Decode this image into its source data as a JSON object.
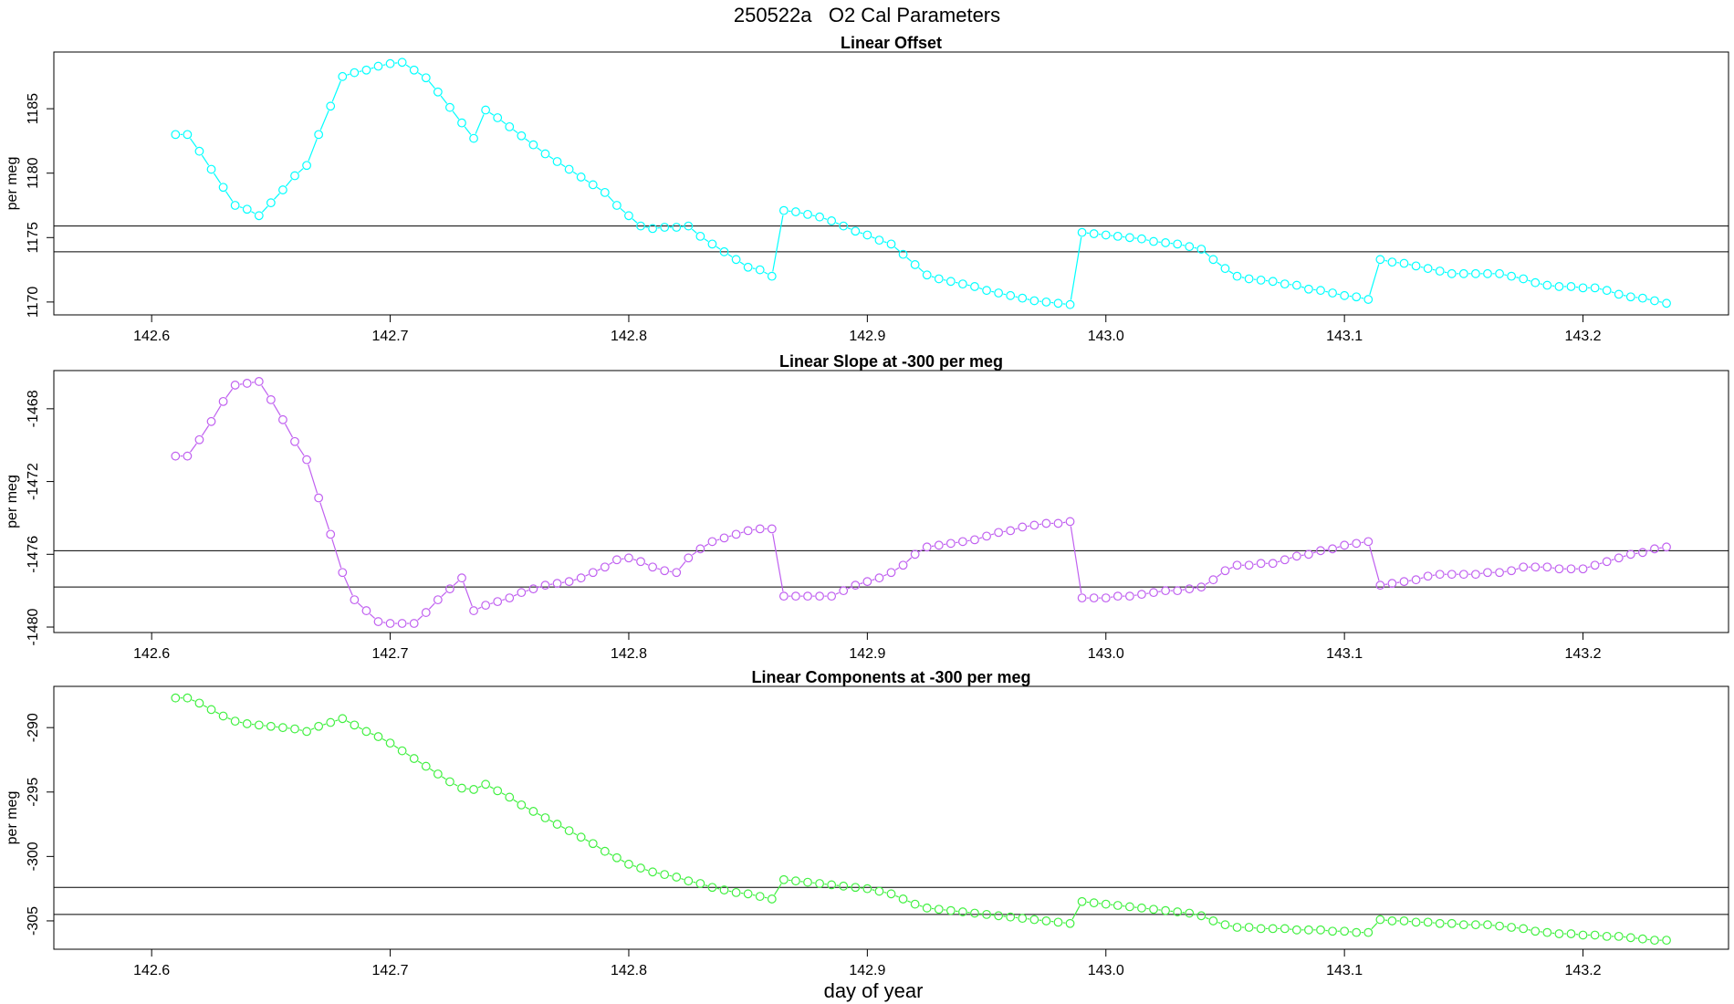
{
  "title": "250522a   O2 Cal Parameters",
  "xlabel": "day of year",
  "chart_data": [
    {
      "type": "scatter",
      "title": "Linear Offset",
      "ylabel": "per meg",
      "color": "#00ffff",
      "x": [
        142.61,
        142.615,
        142.62,
        142.625,
        142.63,
        142.635,
        142.64,
        142.645,
        142.65,
        142.655,
        142.66,
        142.665,
        142.67,
        142.675,
        142.68,
        142.685,
        142.69,
        142.695,
        142.7,
        142.705,
        142.71,
        142.715,
        142.72,
        142.725,
        142.73,
        142.735,
        142.74,
        142.745,
        142.75,
        142.755,
        142.76,
        142.765,
        142.77,
        142.775,
        142.78,
        142.785,
        142.79,
        142.795,
        142.8,
        142.805,
        142.81,
        142.815,
        142.82,
        142.825,
        142.83,
        142.835,
        142.84,
        142.845,
        142.85,
        142.855,
        142.86,
        142.865,
        142.87,
        142.875,
        142.88,
        142.885,
        142.89,
        142.895,
        142.9,
        142.905,
        142.91,
        142.915,
        142.92,
        142.925,
        142.93,
        142.935,
        142.94,
        142.945,
        142.95,
        142.955,
        142.96,
        142.965,
        142.97,
        142.975,
        142.98,
        142.985,
        142.99,
        142.995,
        143,
        143.005,
        143.01,
        143.015,
        143.02,
        143.025,
        143.03,
        143.035,
        143.04,
        143.045,
        143.05,
        143.055,
        143.06,
        143.065,
        143.07,
        143.075,
        143.08,
        143.085,
        143.09,
        143.095,
        143.1,
        143.105,
        143.11,
        143.115,
        143.12,
        143.125,
        143.13,
        143.135,
        143.14,
        143.145,
        143.15,
        143.155,
        143.16,
        143.165,
        143.17,
        143.175,
        143.18,
        143.185,
        143.19,
        143.195,
        143.2,
        143.205,
        143.21,
        143.215,
        143.22,
        143.225,
        143.23,
        143.235
      ],
      "values": [
        1183.0,
        1183.0,
        1181.7,
        1180.3,
        1178.9,
        1177.5,
        1177.2,
        1176.7,
        1177.7,
        1178.7,
        1179.8,
        1180.6,
        1183.0,
        1185.2,
        1187.5,
        1187.8,
        1188.0,
        1188.3,
        1188.5,
        1188.6,
        1188.0,
        1187.4,
        1186.3,
        1185.1,
        1183.9,
        1182.7,
        1184.9,
        1184.3,
        1183.6,
        1182.9,
        1182.2,
        1181.5,
        1180.9,
        1180.3,
        1179.7,
        1179.1,
        1178.5,
        1177.5,
        1176.7,
        1175.9,
        1175.7,
        1175.8,
        1175.8,
        1175.9,
        1175.1,
        1174.5,
        1173.9,
        1173.3,
        1172.7,
        1172.5,
        1172.0,
        1177.1,
        1177.0,
        1176.8,
        1176.6,
        1176.3,
        1175.9,
        1175.5,
        1175.2,
        1174.8,
        1174.5,
        1173.7,
        1172.9,
        1172.1,
        1171.8,
        1171.6,
        1171.4,
        1171.2,
        1170.9,
        1170.7,
        1170.5,
        1170.3,
        1170.1,
        1170.0,
        1169.9,
        1169.8,
        1175.4,
        1175.3,
        1175.2,
        1175.1,
        1175.0,
        1174.9,
        1174.7,
        1174.6,
        1174.5,
        1174.3,
        1174.1,
        1173.3,
        1172.6,
        1172.0,
        1171.8,
        1171.7,
        1171.6,
        1171.4,
        1171.3,
        1171.0,
        1170.9,
        1170.7,
        1170.5,
        1170.4,
        1170.2,
        1173.3,
        1173.1,
        1173.0,
        1172.8,
        1172.6,
        1172.4,
        1172.2,
        1172.2,
        1172.2,
        1172.2,
        1172.2,
        1172.0,
        1171.8,
        1171.5,
        1171.3,
        1171.2,
        1171.2,
        1171.1,
        1171.1,
        1170.9,
        1170.6,
        1170.4,
        1170.3,
        1170.1,
        1169.9
      ],
      "xlim": [
        142.559,
        143.261
      ],
      "xticks": [
        142.6,
        142.7,
        142.8,
        142.9,
        {
          "value": 143,
          "label": "143.0"
        },
        143.1,
        143.2
      ],
      "ylim": [
        1169.0,
        1189.4
      ],
      "yticks": [
        1170,
        1175,
        1180,
        1185
      ],
      "hlines": [
        1175.9,
        1173.9
      ]
    },
    {
      "type": "scatter",
      "title": "Linear Slope at -300 per meg",
      "ylabel": "per meg",
      "color": "#c060f0",
      "x": [
        142.61,
        142.615,
        142.62,
        142.625,
        142.63,
        142.635,
        142.64,
        142.645,
        142.65,
        142.655,
        142.66,
        142.665,
        142.67,
        142.675,
        142.68,
        142.685,
        142.69,
        142.695,
        142.7,
        142.705,
        142.71,
        142.715,
        142.72,
        142.725,
        142.73,
        142.735,
        142.74,
        142.745,
        142.75,
        142.755,
        142.76,
        142.765,
        142.77,
        142.775,
        142.78,
        142.785,
        142.79,
        142.795,
        142.8,
        142.805,
        142.81,
        142.815,
        142.82,
        142.825,
        142.83,
        142.835,
        142.84,
        142.845,
        142.85,
        142.855,
        142.86,
        142.865,
        142.87,
        142.875,
        142.88,
        142.885,
        142.89,
        142.895,
        142.9,
        142.905,
        142.91,
        142.915,
        142.92,
        142.925,
        142.93,
        142.935,
        142.94,
        142.945,
        142.95,
        142.955,
        142.96,
        142.965,
        142.97,
        142.975,
        142.98,
        142.985,
        142.99,
        142.995,
        143,
        143.005,
        143.01,
        143.015,
        143.02,
        143.025,
        143.03,
        143.035,
        143.04,
        143.045,
        143.05,
        143.055,
        143.06,
        143.065,
        143.07,
        143.075,
        143.08,
        143.085,
        143.09,
        143.095,
        143.1,
        143.105,
        143.11,
        143.115,
        143.12,
        143.125,
        143.13,
        143.135,
        143.14,
        143.145,
        143.15,
        143.155,
        143.16,
        143.165,
        143.17,
        143.175,
        143.18,
        143.185,
        143.19,
        143.195,
        143.2,
        143.205,
        143.21,
        143.215,
        143.22,
        143.225,
        143.23,
        143.235
      ],
      "values": [
        -1470.6,
        -1470.6,
        -1469.7,
        -1468.7,
        -1467.6,
        -1466.7,
        -1466.6,
        -1466.5,
        -1467.5,
        -1468.6,
        -1469.8,
        -1470.8,
        -1472.9,
        -1474.9,
        -1477.0,
        -1478.5,
        -1479.1,
        -1479.7,
        -1479.8,
        -1479.8,
        -1479.8,
        -1479.2,
        -1478.5,
        -1477.9,
        -1477.3,
        -1479.1,
        -1478.8,
        -1478.6,
        -1478.4,
        -1478.1,
        -1477.9,
        -1477.7,
        -1477.6,
        -1477.5,
        -1477.3,
        -1477.0,
        -1476.7,
        -1476.3,
        -1476.2,
        -1476.4,
        -1476.7,
        -1476.9,
        -1477.0,
        -1476.2,
        -1475.7,
        -1475.3,
        -1475.1,
        -1474.9,
        -1474.7,
        -1474.6,
        -1474.6,
        -1478.3,
        -1478.3,
        -1478.3,
        -1478.3,
        -1478.3,
        -1478.0,
        -1477.7,
        -1477.5,
        -1477.3,
        -1477.0,
        -1476.6,
        -1476.0,
        -1475.6,
        -1475.5,
        -1475.4,
        -1475.3,
        -1475.2,
        -1475.0,
        -1474.8,
        -1474.7,
        -1474.5,
        -1474.4,
        -1474.3,
        -1474.3,
        -1474.2,
        -1478.4,
        -1478.4,
        -1478.4,
        -1478.3,
        -1478.3,
        -1478.2,
        -1478.1,
        -1478.0,
        -1478.0,
        -1477.9,
        -1477.8,
        -1477.4,
        -1476.9,
        -1476.6,
        -1476.6,
        -1476.5,
        -1476.5,
        -1476.3,
        -1476.1,
        -1476.0,
        -1475.8,
        -1475.7,
        -1475.5,
        -1475.4,
        -1475.3,
        -1477.7,
        -1477.6,
        -1477.5,
        -1477.4,
        -1477.2,
        -1477.1,
        -1477.1,
        -1477.1,
        -1477.1,
        -1477.0,
        -1477.0,
        -1476.9,
        -1476.7,
        -1476.7,
        -1476.7,
        -1476.8,
        -1476.8,
        -1476.8,
        -1476.6,
        -1476.4,
        -1476.2,
        -1476.0,
        -1475.9,
        -1475.7,
        -1475.6
      ],
      "xlim": [
        142.559,
        143.261
      ],
      "xticks": [
        142.6,
        142.7,
        142.8,
        142.9,
        {
          "value": 143,
          "label": "143.0"
        },
        143.1,
        143.2
      ],
      "ylim": [
        -1480.3,
        -1465.9
      ],
      "yticks": [
        -1480,
        -1476,
        -1472,
        -1468
      ],
      "hlines": [
        -1475.8,
        -1477.8
      ]
    },
    {
      "type": "scatter",
      "title": "Linear Components at -300 per meg",
      "ylabel": "per meg",
      "color": "#40f040",
      "x": [
        142.61,
        142.615,
        142.62,
        142.625,
        142.63,
        142.635,
        142.64,
        142.645,
        142.65,
        142.655,
        142.66,
        142.665,
        142.67,
        142.675,
        142.68,
        142.685,
        142.69,
        142.695,
        142.7,
        142.705,
        142.71,
        142.715,
        142.72,
        142.725,
        142.73,
        142.735,
        142.74,
        142.745,
        142.75,
        142.755,
        142.76,
        142.765,
        142.77,
        142.775,
        142.78,
        142.785,
        142.79,
        142.795,
        142.8,
        142.805,
        142.81,
        142.815,
        142.82,
        142.825,
        142.83,
        142.835,
        142.84,
        142.845,
        142.85,
        142.855,
        142.86,
        142.865,
        142.87,
        142.875,
        142.88,
        142.885,
        142.89,
        142.895,
        142.9,
        142.905,
        142.91,
        142.915,
        142.92,
        142.925,
        142.93,
        142.935,
        142.94,
        142.945,
        142.95,
        142.955,
        142.96,
        142.965,
        142.97,
        142.975,
        142.98,
        142.985,
        142.99,
        142.995,
        143,
        143.005,
        143.01,
        143.015,
        143.02,
        143.025,
        143.03,
        143.035,
        143.04,
        143.045,
        143.05,
        143.055,
        143.06,
        143.065,
        143.07,
        143.075,
        143.08,
        143.085,
        143.09,
        143.095,
        143.1,
        143.105,
        143.11,
        143.115,
        143.12,
        143.125,
        143.13,
        143.135,
        143.14,
        143.145,
        143.15,
        143.155,
        143.16,
        143.165,
        143.17,
        143.175,
        143.18,
        143.185,
        143.19,
        143.195,
        143.2,
        143.205,
        143.21,
        143.215,
        143.22,
        143.225,
        143.23,
        143.235
      ],
      "values": [
        -287.7,
        -287.7,
        -288.1,
        -288.6,
        -289.1,
        -289.5,
        -289.7,
        -289.8,
        -289.9,
        -290.0,
        -290.1,
        -290.3,
        -289.9,
        -289.6,
        -289.3,
        -289.8,
        -290.3,
        -290.7,
        -291.2,
        -291.8,
        -292.4,
        -293.0,
        -293.6,
        -294.2,
        -294.7,
        -294.8,
        -294.4,
        -294.9,
        -295.4,
        -296.0,
        -296.5,
        -297.0,
        -297.5,
        -298.0,
        -298.5,
        -299.0,
        -299.6,
        -300.1,
        -300.6,
        -300.9,
        -301.2,
        -301.4,
        -301.6,
        -301.9,
        -302.1,
        -302.4,
        -302.6,
        -302.8,
        -302.9,
        -303.1,
        -303.3,
        -301.8,
        -301.9,
        -302.0,
        -302.1,
        -302.2,
        -302.3,
        -302.4,
        -302.5,
        -302.7,
        -302.9,
        -303.3,
        -303.7,
        -304.0,
        -304.1,
        -304.2,
        -304.3,
        -304.4,
        -304.5,
        -304.6,
        -304.7,
        -304.8,
        -304.9,
        -305.0,
        -305.1,
        -305.2,
        -303.5,
        -303.6,
        -303.7,
        -303.8,
        -303.9,
        -304.0,
        -304.1,
        -304.2,
        -304.3,
        -304.4,
        -304.6,
        -305.0,
        -305.3,
        -305.5,
        -305.5,
        -305.6,
        -305.6,
        -305.6,
        -305.7,
        -305.7,
        -305.7,
        -305.8,
        -305.8,
        -305.9,
        -305.9,
        -304.9,
        -305.0,
        -305.0,
        -305.1,
        -305.1,
        -305.2,
        -305.2,
        -305.3,
        -305.3,
        -305.3,
        -305.4,
        -305.5,
        -305.6,
        -305.8,
        -305.9,
        -306.0,
        -306.0,
        -306.1,
        -306.1,
        -306.2,
        -306.2,
        -306.3,
        -306.4,
        -306.5,
        -306.5
      ],
      "xlim": [
        142.559,
        143.261
      ],
      "xticks": [
        142.6,
        142.7,
        142.8,
        142.9,
        {
          "value": 143,
          "label": "143.0"
        },
        143.1,
        143.2
      ],
      "ylim": [
        -307.2,
        -286.8
      ],
      "yticks": [
        -305,
        -300,
        -295,
        -290
      ],
      "hlines": [
        -302.4,
        -304.5
      ]
    }
  ]
}
